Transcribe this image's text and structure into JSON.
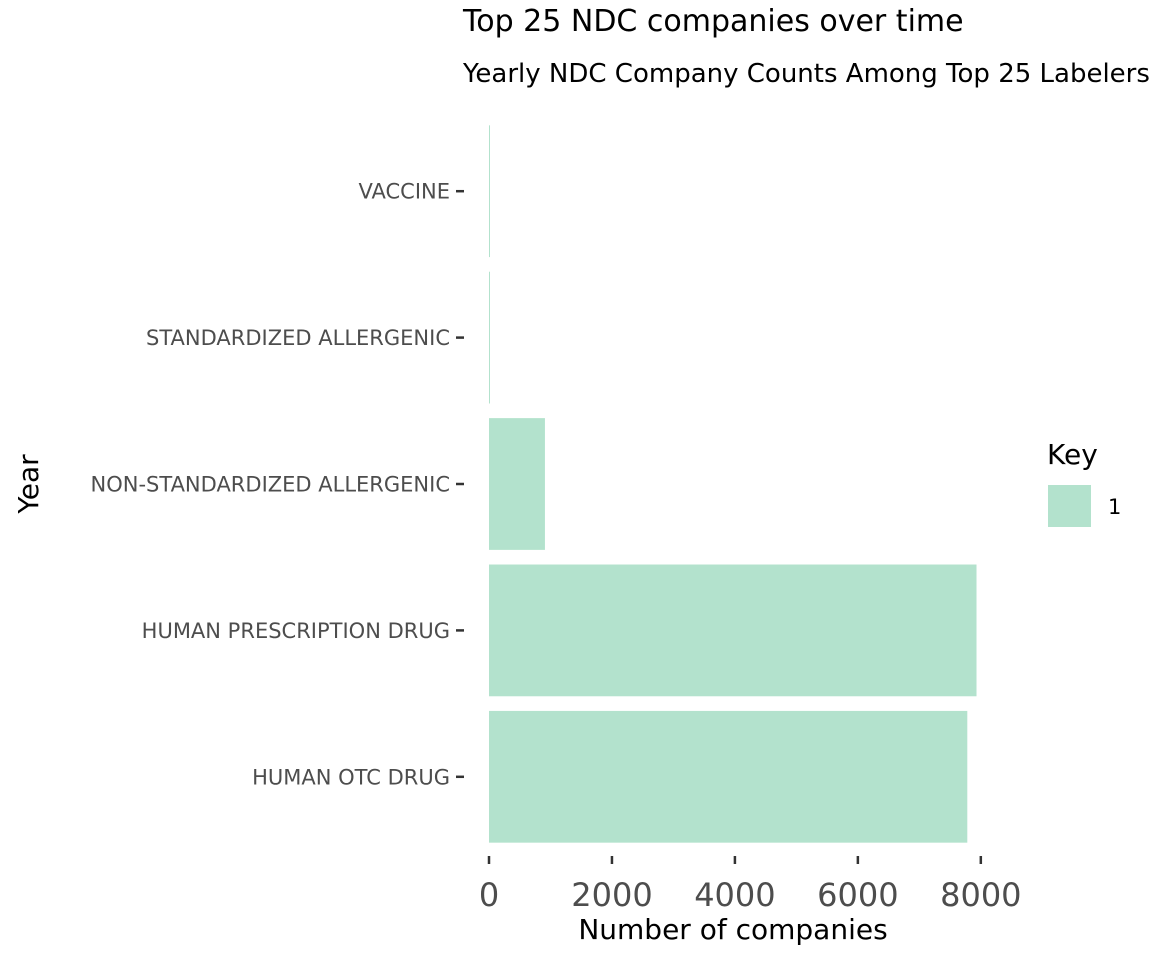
{
  "chart_data": {
    "type": "bar",
    "orientation": "horizontal",
    "title": "Top 25 NDC companies over time",
    "subtitle": "Yearly NDC Company Counts Among Top 25 Labelers",
    "xlabel": "Number of companies",
    "ylabel": "Year",
    "categories": [
      "HUMAN OTC DRUG",
      "HUMAN PRESCRIPTION DRUG",
      "NON-STANDARDIZED ALLERGENIC",
      "STANDARDIZED ALLERGENIC",
      "VACCINE"
    ],
    "series": [
      {
        "name": "1",
        "values": [
          7780,
          7930,
          910,
          10,
          10
        ]
      }
    ],
    "xlim": [
      0,
      8800
    ],
    "xticks": [
      0,
      2000,
      4000,
      6000,
      8000
    ],
    "grid": false,
    "legend": {
      "title": "Key",
      "position": "right"
    },
    "bar_color": "#b3e2cd"
  }
}
